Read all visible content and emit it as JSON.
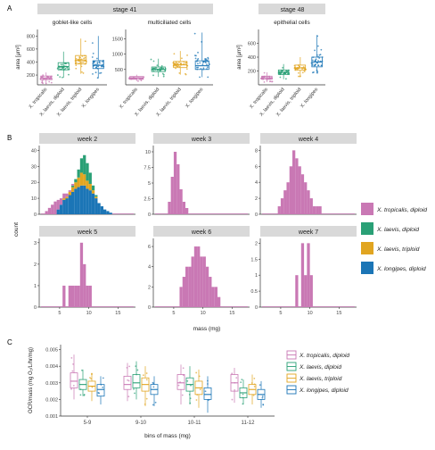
{
  "colors": {
    "tropicalis": "#c978b4",
    "laevis_diploid": "#2aa076",
    "laevis_triploid": "#e1a521",
    "longipes": "#1b75b6",
    "strip": "#d9d9d9",
    "axis": "#333333"
  },
  "panel_letters": {
    "a": "A",
    "b": "B",
    "c": "C"
  },
  "panel_a": {
    "stage_labels": [
      "stage 41",
      "stage 48"
    ],
    "ylabel": "area [μm²]",
    "species_labels": [
      "X. tropicalis",
      "X. laevis, diploid",
      "X. laevis, triploid",
      "X. longipes"
    ],
    "chart_data": [
      {
        "type": "box",
        "title": "goblet-like cells",
        "stage": "stage 41",
        "yticks": [
          200,
          400,
          600,
          800
        ],
        "ylim": [
          50,
          900
        ],
        "series": [
          {
            "name": "X. tropicalis",
            "q1": 130,
            "median": 155,
            "q3": 185,
            "min": 70,
            "max": 240
          },
          {
            "name": "X. laevis, diploid",
            "q1": 280,
            "median": 330,
            "q3": 390,
            "min": 160,
            "max": 560
          },
          {
            "name": "X. laevis, triploid",
            "q1": 370,
            "median": 430,
            "q3": 500,
            "min": 220,
            "max": 760
          },
          {
            "name": "X. longipes",
            "q1": 300,
            "median": 350,
            "q3": 420,
            "min": 150,
            "max": 800
          }
        ]
      },
      {
        "type": "box",
        "title": "multiciliated cells",
        "stage": "stage 41",
        "yticks": [
          500,
          1000,
          1500
        ],
        "ylim": [
          0,
          1800
        ],
        "series": [
          {
            "name": "X. tropicalis",
            "q1": 180,
            "median": 230,
            "q3": 270,
            "min": 120,
            "max": 330
          },
          {
            "name": "X. laevis, diploid",
            "q1": 430,
            "median": 500,
            "q3": 580,
            "min": 260,
            "max": 850
          },
          {
            "name": "X. laevis, triploid",
            "q1": 560,
            "median": 650,
            "q3": 760,
            "min": 330,
            "max": 1100
          },
          {
            "name": "X. longipes",
            "q1": 500,
            "median": 620,
            "q3": 780,
            "min": 250,
            "max": 1700
          }
        ]
      },
      {
        "type": "box",
        "title": "epithelial cells",
        "stage": "stage 48",
        "yticks": [
          200,
          400,
          600
        ],
        "ylim": [
          0,
          800
        ],
        "series": [
          {
            "name": "X. tropicalis",
            "q1": 80,
            "median": 100,
            "q3": 125,
            "min": 40,
            "max": 180
          },
          {
            "name": "X. laevis, diploid",
            "q1": 150,
            "median": 180,
            "q3": 215,
            "min": 80,
            "max": 300
          },
          {
            "name": "X. laevis, triploid",
            "q1": 210,
            "median": 245,
            "q3": 285,
            "min": 120,
            "max": 400
          },
          {
            "name": "X. longipes",
            "q1": 260,
            "median": 330,
            "q3": 400,
            "min": 170,
            "max": 720
          }
        ]
      }
    ]
  },
  "panel_b": {
    "xlabel": "mass (mg)",
    "ylabel": "count",
    "xticks": [
      5,
      10,
      15
    ],
    "xlim": [
      1.5,
      18
    ],
    "legend": [
      {
        "label": "X. tropicalis, diploid",
        "color": "#c978b4"
      },
      {
        "label": "X. laevis, diploid",
        "color": "#2aa076"
      },
      {
        "label": "X. laevis, triploid",
        "color": "#e1a521"
      },
      {
        "label": "X. longipes, diploid",
        "color": "#1b75b6"
      }
    ],
    "chart_data": [
      {
        "type": "histogram",
        "title": "week 2",
        "yticks": [
          0,
          10,
          20,
          30,
          40
        ],
        "ylim": [
          0,
          43
        ],
        "bin_width": 0.5,
        "bins_start": 2.5,
        "series": [
          {
            "name": "X. longipes, diploid",
            "counts": [
              0,
              0,
              0,
              0,
              3,
              6,
              9,
              10,
              12,
              14,
              16,
              17,
              18,
              18,
              16,
              15,
              13,
              10,
              7,
              5,
              3,
              2,
              1
            ]
          },
          {
            "name": "X. laevis, triploid",
            "counts": [
              0,
              0,
              0,
              0,
              0,
              0,
              1,
              1,
              2,
              3,
              4,
              6,
              8,
              7,
              5,
              4,
              2,
              1,
              0,
              0,
              0,
              0,
              0
            ]
          },
          {
            "name": "X. laevis, diploid",
            "counts": [
              0,
              0,
              0,
              0,
              0,
              0,
              0,
              0,
              0,
              1,
              2,
              5,
              9,
              12,
              11,
              7,
              3,
              1,
              0,
              0,
              0,
              0,
              0
            ]
          },
          {
            "name": "X. tropicalis, diploid",
            "counts": [
              2,
              4,
              6,
              8,
              6,
              4,
              3,
              2,
              1,
              1,
              0,
              0,
              0,
              0,
              0,
              0,
              0,
              0,
              0,
              0,
              0,
              0,
              0
            ]
          }
        ]
      },
      {
        "type": "histogram",
        "title": "week 3",
        "yticks": [
          0.0,
          2.5,
          5.0,
          7.5,
          10.0
        ],
        "ylim": [
          0,
          11
        ],
        "bin_width": 0.5,
        "bins_start": 4.0,
        "series": [
          {
            "name": "X. tropicalis, diploid",
            "counts": [
              2,
              6,
              10,
              8,
              4,
              2,
              1
            ]
          }
        ]
      },
      {
        "type": "histogram",
        "title": "week 4",
        "yticks": [
          0,
          2,
          4,
          6,
          8
        ],
        "ylim": [
          0,
          8.6
        ],
        "bin_width": 0.5,
        "bins_start": 4.5,
        "series": [
          {
            "name": "X. tropicalis, diploid",
            "counts": [
              1,
              2,
              3,
              4,
              6,
              8,
              7,
              6,
              5,
              4,
              3,
              2,
              1,
              1,
              1
            ]
          }
        ]
      },
      {
        "type": "histogram",
        "title": "week 5",
        "yticks": [
          0,
          1,
          2,
          3
        ],
        "ylim": [
          0,
          3.2
        ],
        "bin_width": 0.5,
        "bins_start": 5.5,
        "series": [
          {
            "name": "X. tropicalis, diploid",
            "counts": [
              1,
              0,
              1,
              1,
              1,
              1,
              3,
              2,
              1,
              1
            ]
          }
        ]
      },
      {
        "type": "histogram",
        "title": "week 6",
        "yticks": [
          0,
          2,
          4,
          6
        ],
        "ylim": [
          0,
          6.8
        ],
        "bin_width": 0.5,
        "bins_start": 6.0,
        "series": [
          {
            "name": "X. tropicalis, diploid",
            "counts": [
              2,
              3,
              4,
              4,
              5,
              6,
              6,
              5,
              5,
              4,
              3,
              2,
              2,
              1
            ]
          }
        ]
      },
      {
        "type": "histogram",
        "title": "week 7",
        "yticks": [
          0.0,
          0.5,
          1.0,
          1.5,
          2.0
        ],
        "ylim": [
          0,
          2.15
        ],
        "bin_width": 0.5,
        "bins_start": 7.5,
        "series": [
          {
            "name": "X. tropicalis, diploid",
            "counts": [
              1,
              0,
              2,
              1,
              2,
              1
            ]
          }
        ]
      }
    ]
  },
  "panel_c": {
    "chart_data": {
      "type": "box",
      "ylabel": "OCR/mass (mg O₂/L/hr/mg)",
      "xlabel": "bins of mass (mg)",
      "yticks": [
        0.001,
        0.002,
        0.003,
        0.004,
        0.005
      ],
      "ylim": [
        0.001,
        0.0053
      ],
      "categories": [
        "5-9",
        "9-10",
        "10-11",
        "11-12"
      ],
      "series": [
        {
          "name": "X. tropicalis, diploid",
          "boxes": [
            {
              "q1": 0.0027,
              "median": 0.0031,
              "q3": 0.0036,
              "min": 0.002,
              "max": 0.0047
            },
            {
              "q1": 0.0026,
              "median": 0.0029,
              "q3": 0.0034,
              "min": 0.0019,
              "max": 0.0042
            },
            {
              "q1": 0.0026,
              "median": 0.003,
              "q3": 0.0035,
              "min": 0.0017,
              "max": 0.0041
            },
            {
              "q1": 0.0025,
              "median": 0.003,
              "q3": 0.0035,
              "min": 0.0018,
              "max": 0.0039
            }
          ]
        },
        {
          "name": "X. laevis, diploid",
          "boxes": [
            {
              "q1": 0.0026,
              "median": 0.0029,
              "q3": 0.0032,
              "min": 0.0022,
              "max": 0.0038
            },
            {
              "q1": 0.0027,
              "median": 0.003,
              "q3": 0.0035,
              "min": 0.002,
              "max": 0.0043
            },
            {
              "q1": 0.0025,
              "median": 0.0029,
              "q3": 0.0033,
              "min": 0.0017,
              "max": 0.004
            },
            {
              "q1": 0.0021,
              "median": 0.0024,
              "q3": 0.0027,
              "min": 0.0017,
              "max": 0.0032
            }
          ]
        },
        {
          "name": "X. laevis, triploid",
          "boxes": [
            {
              "q1": 0.0025,
              "median": 0.0028,
              "q3": 0.0031,
              "min": 0.0019,
              "max": 0.0036
            },
            {
              "q1": 0.0025,
              "median": 0.0029,
              "q3": 0.0033,
              "min": 0.0016,
              "max": 0.004
            },
            {
              "q1": 0.0023,
              "median": 0.0027,
              "q3": 0.0031,
              "min": 0.0015,
              "max": 0.0038
            },
            {
              "q1": 0.0023,
              "median": 0.0026,
              "q3": 0.0029,
              "min": 0.0017,
              "max": 0.0035
            }
          ]
        },
        {
          "name": "X. longipes, diploid",
          "boxes": [
            {
              "q1": 0.0022,
              "median": 0.0026,
              "q3": 0.0029,
              "min": 0.0017,
              "max": 0.0034
            },
            {
              "q1": 0.0023,
              "median": 0.0026,
              "q3": 0.0029,
              "min": 0.0016,
              "max": 0.0034
            },
            {
              "q1": 0.002,
              "median": 0.0023,
              "q3": 0.0027,
              "min": 0.0012,
              "max": 0.0034
            },
            {
              "q1": 0.002,
              "median": 0.0023,
              "q3": 0.0026,
              "min": 0.0015,
              "max": 0.0031
            }
          ]
        }
      ]
    }
  }
}
